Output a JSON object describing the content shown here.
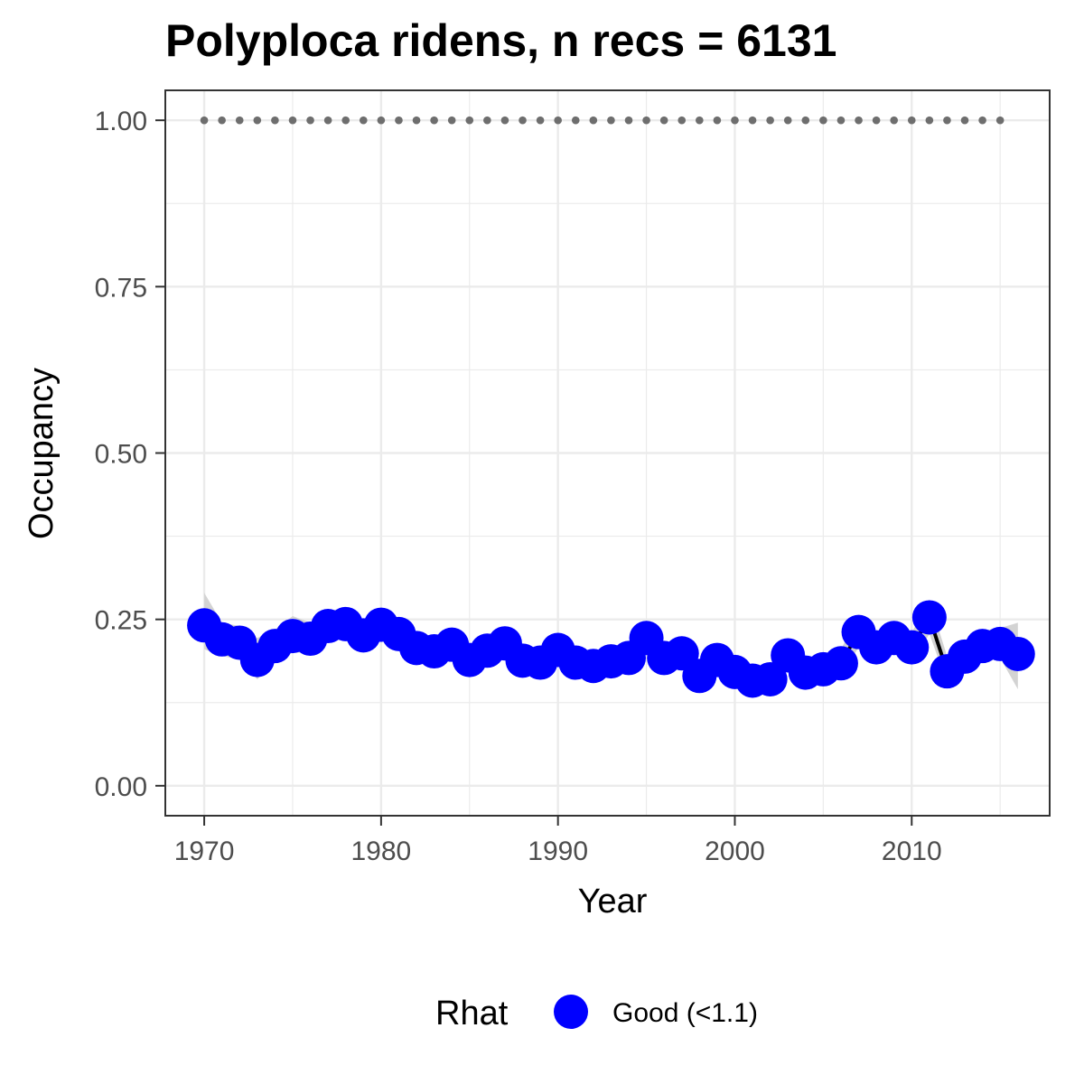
{
  "chart_data": {
    "type": "line",
    "title": "Polyploca ridens, n recs = 6131",
    "xlabel": "Year",
    "ylabel": "Occupancy",
    "xlim": [
      1967.8,
      2017.8
    ],
    "ylim": [
      -0.045,
      1.045
    ],
    "x_ticks": [
      1970,
      1980,
      1990,
      2000,
      2010
    ],
    "x_tick_labels": [
      "1970",
      "1980",
      "1990",
      "2000",
      "2010"
    ],
    "y_ticks": [
      0,
      0.25,
      0.5,
      0.75,
      1.0
    ],
    "y_tick_labels": [
      "0.00",
      "0.25",
      "0.50",
      "0.75",
      "1.00"
    ],
    "grid": true,
    "legend": {
      "title": "Rhat",
      "position": "bottom",
      "entries": [
        {
          "label": "Good (<1.1)",
          "color": "#0000ff"
        }
      ]
    },
    "colors": {
      "points": "#0000ff",
      "line": "#000000",
      "ribbon": "#d3d3d3",
      "reference": "#6e6e6e",
      "grid": "#ebebeb",
      "panel_border": "#333333"
    },
    "series": [
      {
        "name": "Good (<1.1)",
        "x": [
          1970,
          1971,
          1972,
          1973,
          1974,
          1975,
          1976,
          1977,
          1978,
          1979,
          1980,
          1981,
          1982,
          1983,
          1984,
          1985,
          1986,
          1987,
          1988,
          1989,
          1990,
          1991,
          1992,
          1993,
          1994,
          1995,
          1996,
          1997,
          1998,
          1999,
          2000,
          2001,
          2002,
          2003,
          2004,
          2005,
          2006,
          2007,
          2008,
          2009,
          2010,
          2011,
          2012,
          2013,
          2014,
          2015,
          2016
        ],
        "y": [
          0.241,
          0.22,
          0.215,
          0.189,
          0.21,
          0.225,
          0.221,
          0.24,
          0.243,
          0.226,
          0.242,
          0.228,
          0.207,
          0.202,
          0.212,
          0.189,
          0.203,
          0.214,
          0.188,
          0.185,
          0.204,
          0.185,
          0.18,
          0.187,
          0.192,
          0.222,
          0.192,
          0.199,
          0.165,
          0.189,
          0.171,
          0.158,
          0.16,
          0.196,
          0.17,
          0.175,
          0.184,
          0.231,
          0.208,
          0.222,
          0.208,
          0.253,
          0.172,
          0.194,
          0.21,
          0.213,
          0.198
        ],
        "lower": [
          0.205,
          0.195,
          0.19,
          0.16,
          0.185,
          0.2,
          0.2,
          0.218,
          0.22,
          0.203,
          0.218,
          0.205,
          0.185,
          0.18,
          0.19,
          0.168,
          0.182,
          0.192,
          0.168,
          0.165,
          0.183,
          0.166,
          0.162,
          0.168,
          0.172,
          0.199,
          0.172,
          0.178,
          0.15,
          0.17,
          0.153,
          0.142,
          0.144,
          0.176,
          0.152,
          0.157,
          0.165,
          0.208,
          0.188,
          0.2,
          0.187,
          0.228,
          0.155,
          0.175,
          0.19,
          0.192,
          0.145
        ],
        "upper": [
          0.29,
          0.245,
          0.24,
          0.222,
          0.235,
          0.255,
          0.245,
          0.262,
          0.268,
          0.25,
          0.268,
          0.252,
          0.23,
          0.225,
          0.236,
          0.212,
          0.226,
          0.238,
          0.21,
          0.207,
          0.226,
          0.206,
          0.2,
          0.207,
          0.213,
          0.246,
          0.213,
          0.22,
          0.185,
          0.21,
          0.191,
          0.176,
          0.178,
          0.218,
          0.19,
          0.195,
          0.205,
          0.256,
          0.23,
          0.246,
          0.23,
          0.28,
          0.195,
          0.215,
          0.233,
          0.237,
          0.245
        ]
      }
    ],
    "reference_line": {
      "y": 1.0,
      "x": [
        1970,
        1971,
        1972,
        1973,
        1974,
        1975,
        1976,
        1977,
        1978,
        1979,
        1980,
        1981,
        1982,
        1983,
        1984,
        1985,
        1986,
        1987,
        1988,
        1989,
        1990,
        1991,
        1992,
        1993,
        1994,
        1995,
        1996,
        1997,
        1998,
        1999,
        2000,
        2001,
        2002,
        2003,
        2004,
        2005,
        2006,
        2007,
        2008,
        2009,
        2010,
        2011,
        2012,
        2013,
        2014,
        2015
      ]
    }
  }
}
